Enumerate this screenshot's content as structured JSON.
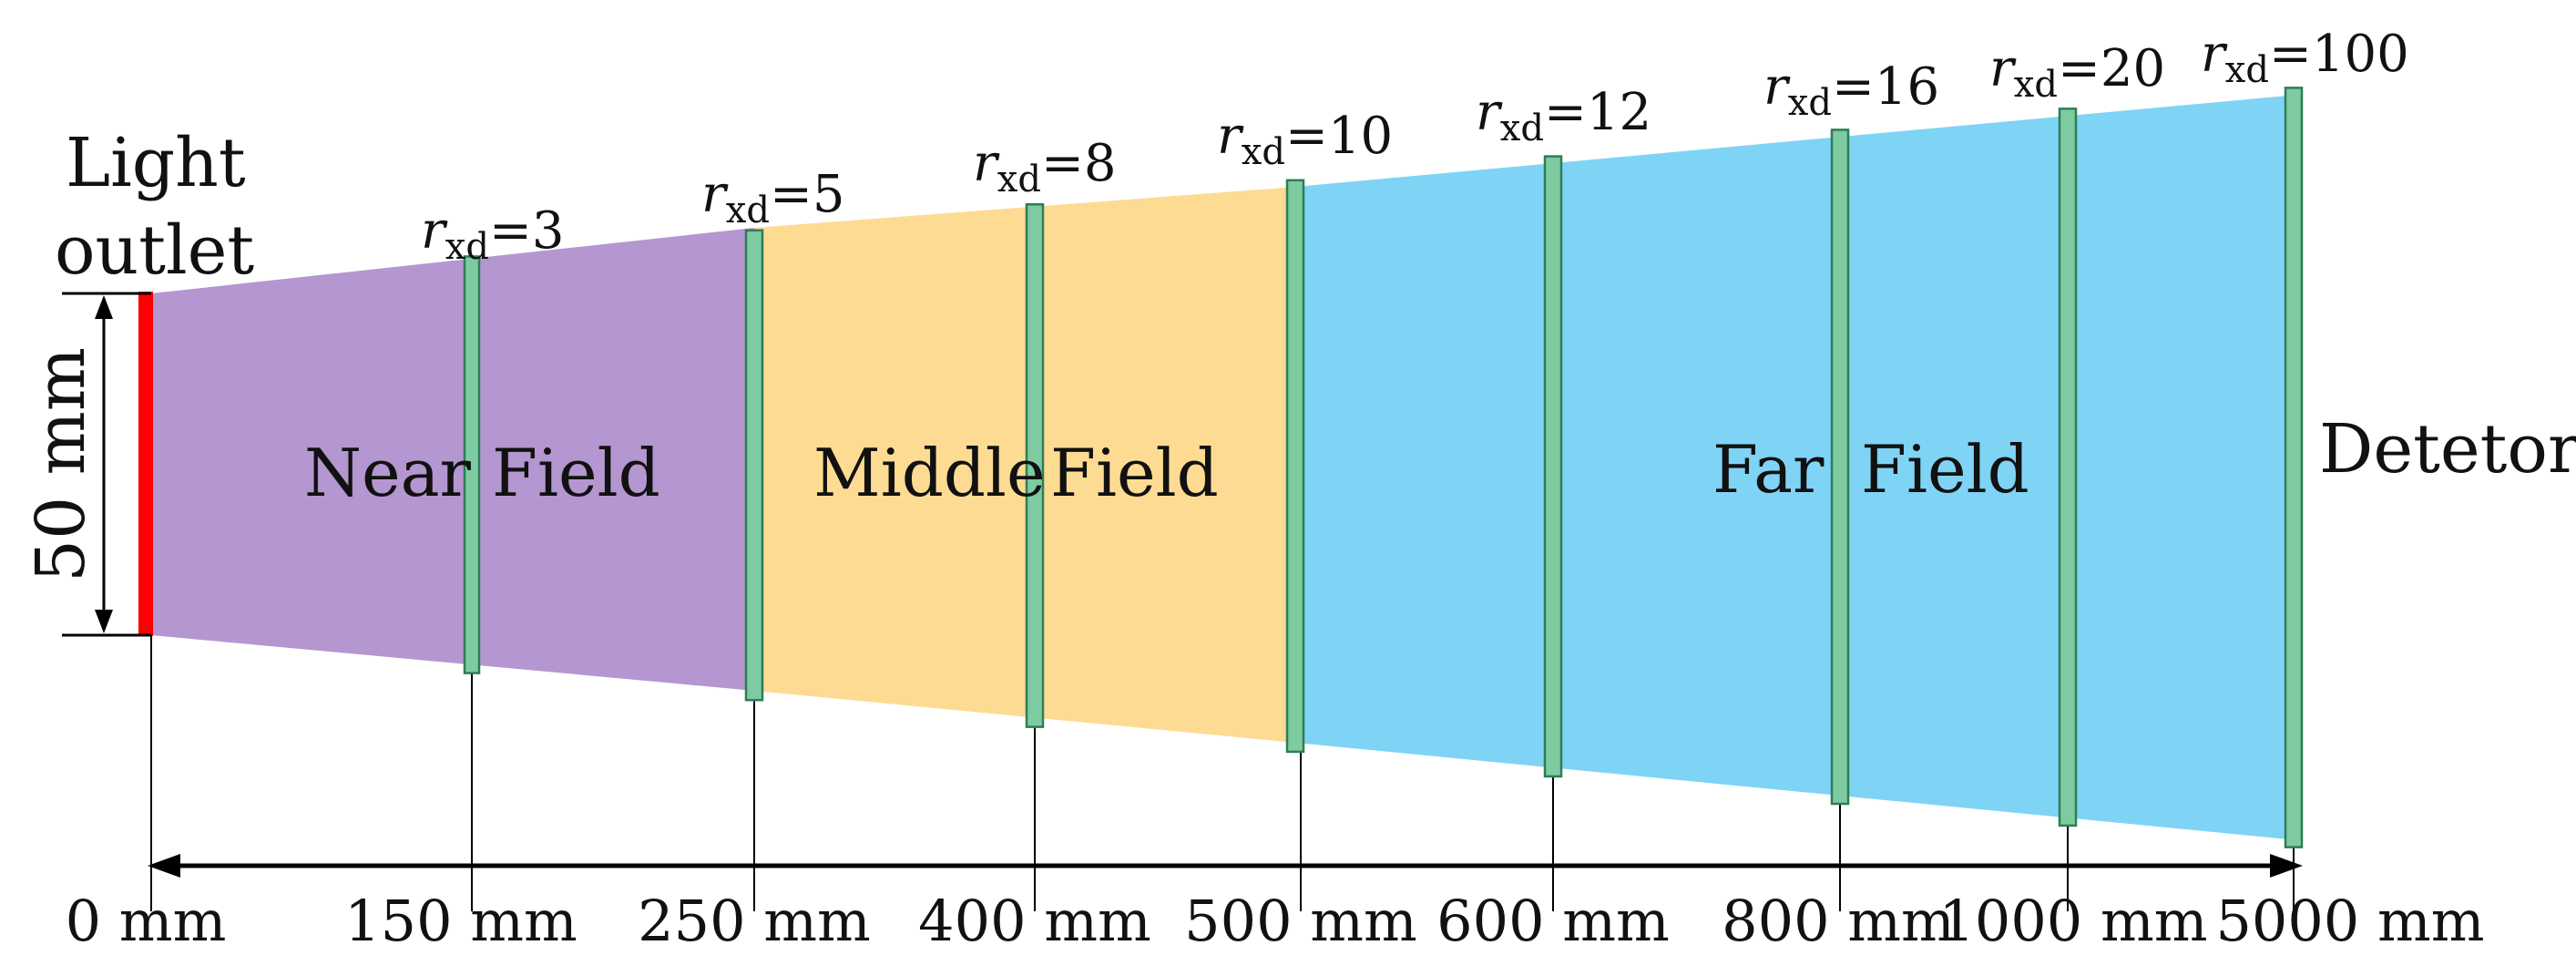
{
  "title_labels": {
    "light_outlet_line1": "Light",
    "light_outlet_line2": "outlet",
    "detector": "Detetor",
    "height": "50 mm"
  },
  "fields": [
    {
      "word1": "Near",
      "word2": "Field",
      "color": "#B496D0"
    },
    {
      "word1": "Middle",
      "word2": "Field",
      "color": "#FDDB93"
    },
    {
      "word1": "Far",
      "word2": "Field",
      "color": "#7FD4F6"
    }
  ],
  "planes": [
    {
      "r_base": "r",
      "r_sub": "xd",
      "r_value": "=3"
    },
    {
      "r_base": "r",
      "r_sub": "xd",
      "r_value": "=5"
    },
    {
      "r_base": "r",
      "r_sub": "xd",
      "r_value": "=8"
    },
    {
      "r_base": "r",
      "r_sub": "xd",
      "r_value": "=10"
    },
    {
      "r_base": "r",
      "r_sub": "xd",
      "r_value": "=12"
    },
    {
      "r_base": "r",
      "r_sub": "xd",
      "r_value": "=16"
    },
    {
      "r_base": "r",
      "r_sub": "xd",
      "r_value": "=20"
    },
    {
      "r_base": "r",
      "r_sub": "xd",
      "r_value": "=100"
    }
  ],
  "distances": [
    "0 mm",
    "150 mm",
    "250 mm",
    "400 mm",
    "500 mm",
    "600 mm",
    "800 mm",
    "1000 mm",
    "5000 mm"
  ],
  "colors": {
    "source": "#FF0000",
    "plane_fill": "#7ECBA1",
    "plane_stroke": "#2E7D57",
    "line": "#000000"
  }
}
